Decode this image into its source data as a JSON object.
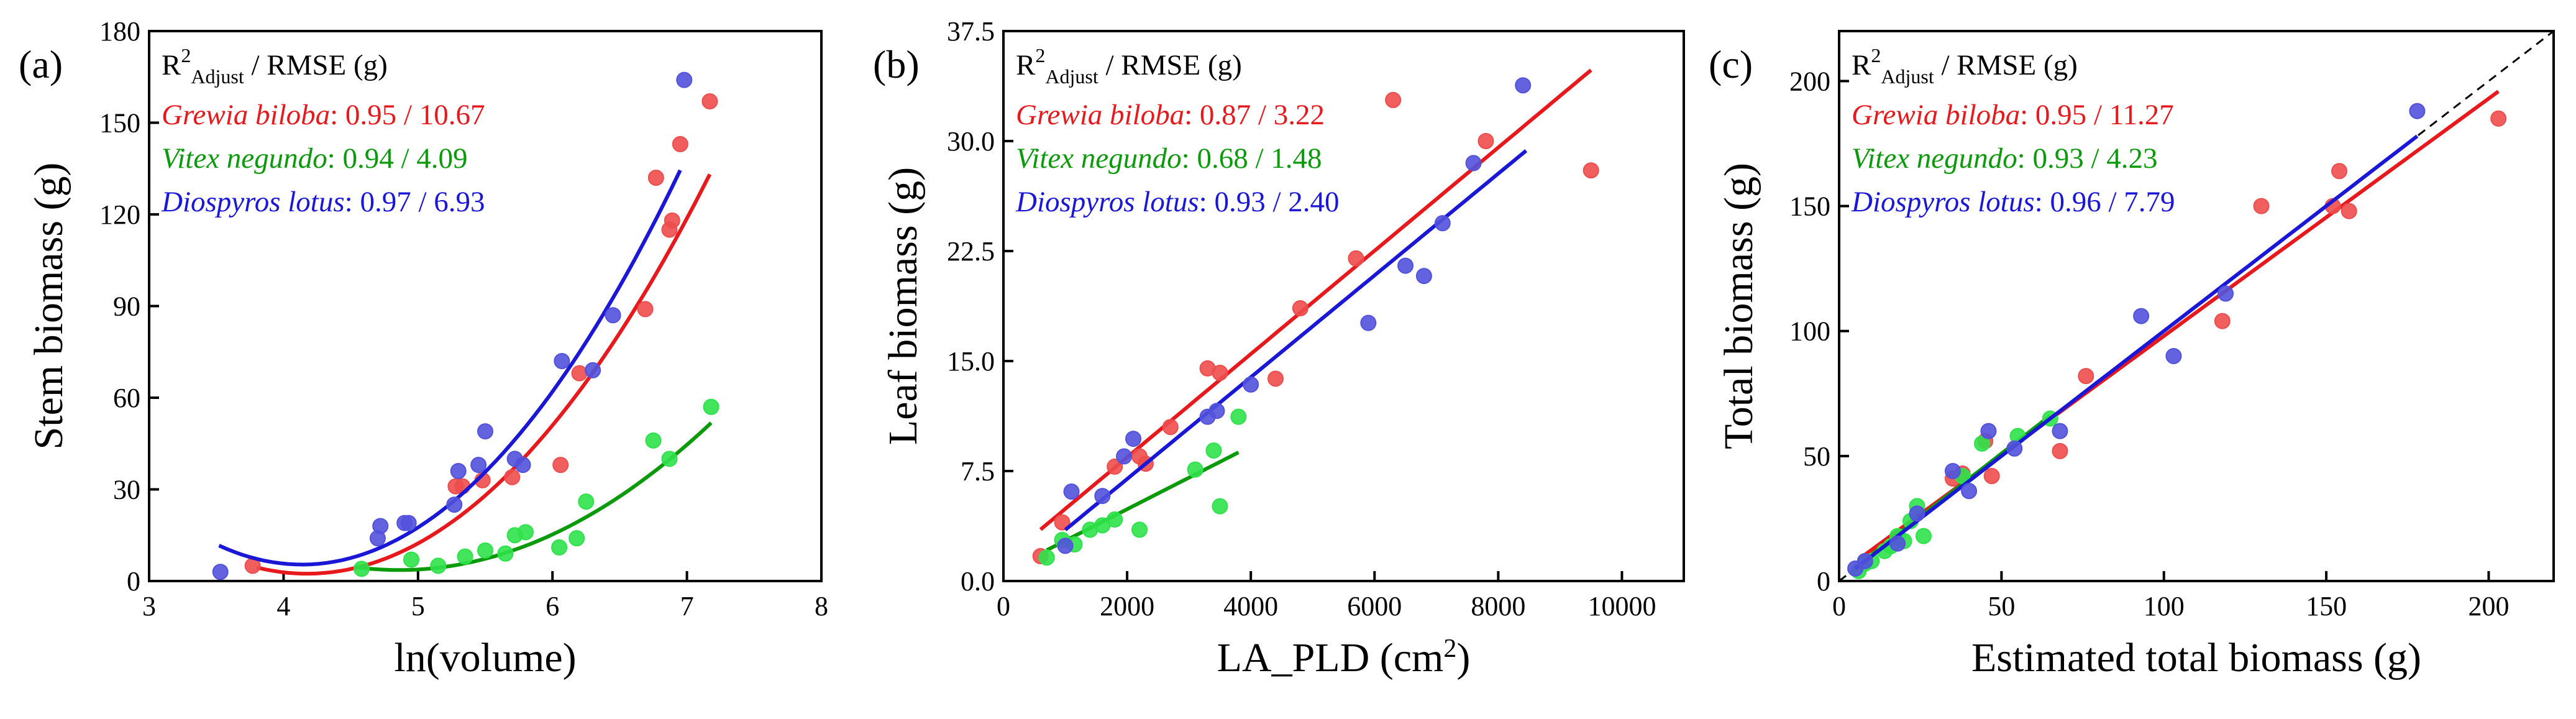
{
  "species_colors": {
    "Grewia biloba": "#e8191c",
    "Vitex negundo": "#0a9a0a",
    "Diospyros lotus": "#1a17d6"
  },
  "marker_colors": {
    "Grewia biloba": "#ee4d4d",
    "Vitex negundo": "#2ee24a",
    "Diospyros lotus": "#5252dd"
  },
  "chart_data": [
    {
      "type": "scatter",
      "panel_label": "(a)",
      "xlabel": "ln(volume)",
      "ylabel": "Stem biomass (g)",
      "xlim": [
        3,
        8
      ],
      "ylim": [
        0,
        180
      ],
      "xticks": [
        3,
        4,
        5,
        6,
        7,
        8
      ],
      "xtick_labels": [
        "3",
        "4",
        "5",
        "6",
        "7",
        "8"
      ],
      "yticks": [
        0,
        30,
        60,
        90,
        120,
        150,
        180
      ],
      "ytick_labels": [
        "0",
        "30",
        "60",
        "90",
        "120",
        "150",
        "180"
      ],
      "stats_header_prefix": "R",
      "stats_header_sup": "2",
      "stats_header_sub": "Adjust",
      "stats_header_suffix": " / RMSE (g)",
      "series": [
        {
          "name": "Grewia biloba",
          "stats": ": 0.95 / 10.67",
          "x": [
            3.77,
            5.28,
            5.33,
            5.48,
            5.7,
            6.06,
            6.2,
            6.69,
            6.77,
            6.87,
            6.89,
            6.95,
            7.17
          ],
          "y": [
            5,
            31,
            31,
            33,
            34,
            38,
            68,
            89,
            132,
            115,
            118,
            143,
            157
          ],
          "fit_x": [
            3.8,
            7.17
          ],
          "fit_coef": [
            256.33,
            -121.65,
            14.57
          ]
        },
        {
          "name": "Vitex negundo",
          "stats": ": 0.94 / 4.09",
          "x": [
            4.58,
            4.95,
            5.15,
            5.35,
            5.5,
            5.65,
            5.72,
            5.8,
            6.05,
            6.18,
            6.25,
            6.75,
            6.87,
            7.18
          ],
          "y": [
            4,
            7,
            5,
            8,
            10,
            9,
            15,
            16,
            11,
            14,
            26,
            46,
            40,
            57
          ],
          "fit_x": [
            4.55,
            7.18
          ],
          "fit_coef": [
            214.63,
            -86.87,
            8.94
          ]
        },
        {
          "name": "Diospyros lotus",
          "stats": ": 0.97 / 6.93",
          "x": [
            3.53,
            4.7,
            4.72,
            4.9,
            4.93,
            5.27,
            5.3,
            5.45,
            5.5,
            5.72,
            5.78,
            6.07,
            6.3,
            6.45,
            6.98
          ],
          "y": [
            3,
            14,
            18,
            19,
            19,
            25,
            36,
            38,
            49,
            40,
            38,
            72,
            69,
            87,
            164
          ],
          "fit_x": [
            3.52,
            6.95
          ],
          "fit_coef": [
            284.54,
            -134.95,
            16.31
          ]
        }
      ]
    },
    {
      "type": "scatter",
      "panel_label": "(b)",
      "xlabel": "LA_PLD (cm",
      "xlabel_sup": "2",
      "xlabel_end": ")",
      "ylabel": "Leaf biomass (g)",
      "xlim": [
        0,
        11000
      ],
      "ylim": [
        0,
        37.5
      ],
      "xticks": [
        0,
        2000,
        4000,
        6000,
        8000,
        10000
      ],
      "xtick_labels": [
        "0",
        "2000",
        "4000",
        "6000",
        "8000",
        "10000"
      ],
      "yticks": [
        0,
        7.5,
        15,
        22.5,
        30,
        37.5
      ],
      "ytick_labels": [
        "0.0",
        "7.5",
        "15.0",
        "22.5",
        "30.0",
        "37.5"
      ],
      "stats_header_prefix": "R",
      "stats_header_sup": "2",
      "stats_header_sub": "Adjust",
      "stats_header_suffix": " / RMSE (g)",
      "series": [
        {
          "name": "Grewia biloba",
          "stats": ": 0.87 / 3.22",
          "x": [
            600,
            950,
            1800,
            2200,
            2300,
            2700,
            3300,
            3500,
            4400,
            4800,
            5700,
            6300,
            7800,
            9500
          ],
          "y": [
            1.7,
            4.0,
            7.8,
            8.5,
            8.0,
            10.5,
            14.5,
            14.2,
            13.8,
            18.6,
            22.0,
            32.8,
            30.0,
            28.0
          ],
          "fit_x": [
            600,
            9500
          ],
          "fit_coef": [
            1.4,
            0.00352
          ]
        },
        {
          "name": "Vitex negundo",
          "stats": ": 0.68 / 1.48",
          "x": [
            700,
            950,
            1150,
            1400,
            1600,
            1800,
            2200,
            3100,
            3400,
            3500,
            3800
          ],
          "y": [
            1.6,
            2.8,
            2.5,
            3.5,
            3.8,
            4.2,
            3.5,
            7.6,
            8.9,
            5.1,
            11.2
          ],
          "fit_x": [
            700,
            3800
          ],
          "fit_coef": [
            0.6,
            0.00215
          ]
        },
        {
          "name": "Diospyros lotus",
          "stats": ": 0.93 / 2.40",
          "x": [
            1000,
            1100,
            1600,
            1950,
            2100,
            3300,
            3450,
            4000,
            5900,
            6500,
            6800,
            7100,
            7600,
            8400
          ],
          "y": [
            2.4,
            6.1,
            5.8,
            8.5,
            9.7,
            11.2,
            11.6,
            13.4,
            17.6,
            21.5,
            20.8,
            24.4,
            28.5,
            33.8
          ],
          "fit_x": [
            1000,
            8450
          ],
          "fit_coef": [
            0.02,
            0.00347
          ]
        }
      ]
    },
    {
      "type": "scatter",
      "panel_label": "(c)",
      "xlabel": "Estimated total biomass (g)",
      "ylabel": "Total biomass (g)",
      "xlim": [
        0,
        220
      ],
      "ylim": [
        0,
        220
      ],
      "xticks": [
        0,
        50,
        100,
        150,
        200
      ],
      "xtick_labels": [
        "0",
        "50",
        "100",
        "150",
        "200"
      ],
      "yticks": [
        0,
        50,
        100,
        150,
        200
      ],
      "ytick_labels": [
        "0",
        "50",
        "100",
        "150",
        "200"
      ],
      "diagonal": true,
      "stats_header_prefix": "R",
      "stats_header_sup": "2",
      "stats_header_sub": "Adjust",
      "stats_header_suffix": " / RMSE (g)",
      "series": [
        {
          "name": "Grewia biloba",
          "stats": ": 0.95 / 11.27",
          "x": [
            8,
            35,
            38,
            45,
            47,
            68,
            76,
            118,
            130,
            152,
            154,
            157,
            203
          ],
          "y": [
            8,
            41,
            43,
            56,
            42,
            52,
            82,
            104,
            150,
            150,
            164,
            148,
            185
          ],
          "fit_x": [
            6,
            203
          ],
          "fit_coef": [
            3.0,
            0.95
          ]
        },
        {
          "name": "Vitex negundo",
          "stats": ": 0.93 / 4.23",
          "x": [
            6,
            8,
            10,
            14,
            16,
            18,
            20,
            22,
            24,
            26,
            38,
            44,
            55,
            65
          ],
          "y": [
            4,
            7,
            8,
            12,
            14,
            18,
            16,
            24,
            30,
            18,
            42,
            55,
            58,
            65
          ],
          "fit_x": [
            5,
            65
          ],
          "fit_coef": [
            0.5,
            1.01
          ]
        },
        {
          "name": "Diospyros lotus",
          "stats": ": 0.96 / 7.79",
          "x": [
            5,
            8,
            18,
            24,
            35,
            40,
            46,
            54,
            68,
            93,
            103,
            119,
            178
          ],
          "y": [
            5,
            8,
            15,
            27,
            44,
            36,
            60,
            53,
            60,
            106,
            90,
            115,
            188
          ],
          "fit_x": [
            5,
            178
          ],
          "fit_coef": [
            0.0,
            1.0
          ]
        }
      ]
    }
  ]
}
